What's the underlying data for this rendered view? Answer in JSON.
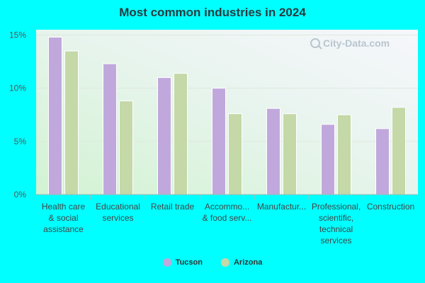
{
  "chart_data": {
    "type": "bar",
    "title": "Most common industries in 2024",
    "categories": [
      [
        "Health care",
        "& social",
        "assistance"
      ],
      [
        "Educational",
        "services"
      ],
      [
        "Retail trade"
      ],
      [
        "Accommo...",
        "& food serv..."
      ],
      [
        "Manufactur..."
      ],
      [
        "Professional,",
        "scientific,",
        "technical",
        "services"
      ],
      [
        "Construction"
      ]
    ],
    "series": [
      {
        "name": "Tucson",
        "color": "#c0a8dc",
        "values": [
          14.8,
          12.3,
          11.0,
          10.0,
          8.1,
          6.6,
          6.2
        ]
      },
      {
        "name": "Arizona",
        "color": "#c4d8a8",
        "values": [
          13.5,
          8.8,
          11.4,
          7.6,
          7.6,
          7.5,
          8.2
        ]
      }
    ],
    "yticks": [
      "0%",
      "5%",
      "10%",
      "15%"
    ],
    "ylim": [
      0,
      15.5
    ],
    "grid": true,
    "legend_position": "bottom-center"
  },
  "watermark": "City-Data.com"
}
